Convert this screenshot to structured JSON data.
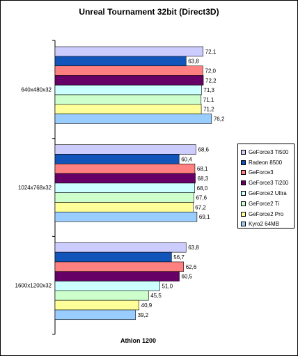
{
  "chart_data": {
    "type": "bar",
    "orientation": "horizontal",
    "title": "Unreal Tournament 32bit (Direct3D)",
    "xlabel": "Athlon 1200",
    "ylabel": "",
    "categories": [
      "640x480x32",
      "1024x768x32",
      "1600x1200x32"
    ],
    "xlim": [
      0,
      81
    ],
    "grid": false,
    "legend_position": "right",
    "decimal_separator": ",",
    "series": [
      {
        "name": "GeForce3 Ti500",
        "color": "#ccccff",
        "values": [
          72.1,
          68.6,
          63.8
        ]
      },
      {
        "name": "Radeon 8500",
        "color": "#1155bb",
        "values": [
          63.8,
          60.4,
          56.7
        ]
      },
      {
        "name": "GeForce3",
        "color": "#ff8080",
        "values": [
          72.0,
          68.1,
          62.6
        ]
      },
      {
        "name": "GeForce3 Ti200",
        "color": "#660066",
        "values": [
          72.2,
          68.3,
          60.5
        ]
      },
      {
        "name": "GeForce2 Ultra",
        "color": "#ccffff",
        "values": [
          71.3,
          68.0,
          51.0
        ]
      },
      {
        "name": "GeForce2 Ti",
        "color": "#ccffcc",
        "values": [
          71.1,
          67.6,
          45.5
        ]
      },
      {
        "name": "GeForce2 Pro",
        "color": "#ffff99",
        "values": [
          71.2,
          67.2,
          40.9
        ]
      },
      {
        "name": "Kyro2 64MB",
        "color": "#99ccff",
        "values": [
          76.2,
          69.1,
          39.2
        ]
      }
    ]
  }
}
